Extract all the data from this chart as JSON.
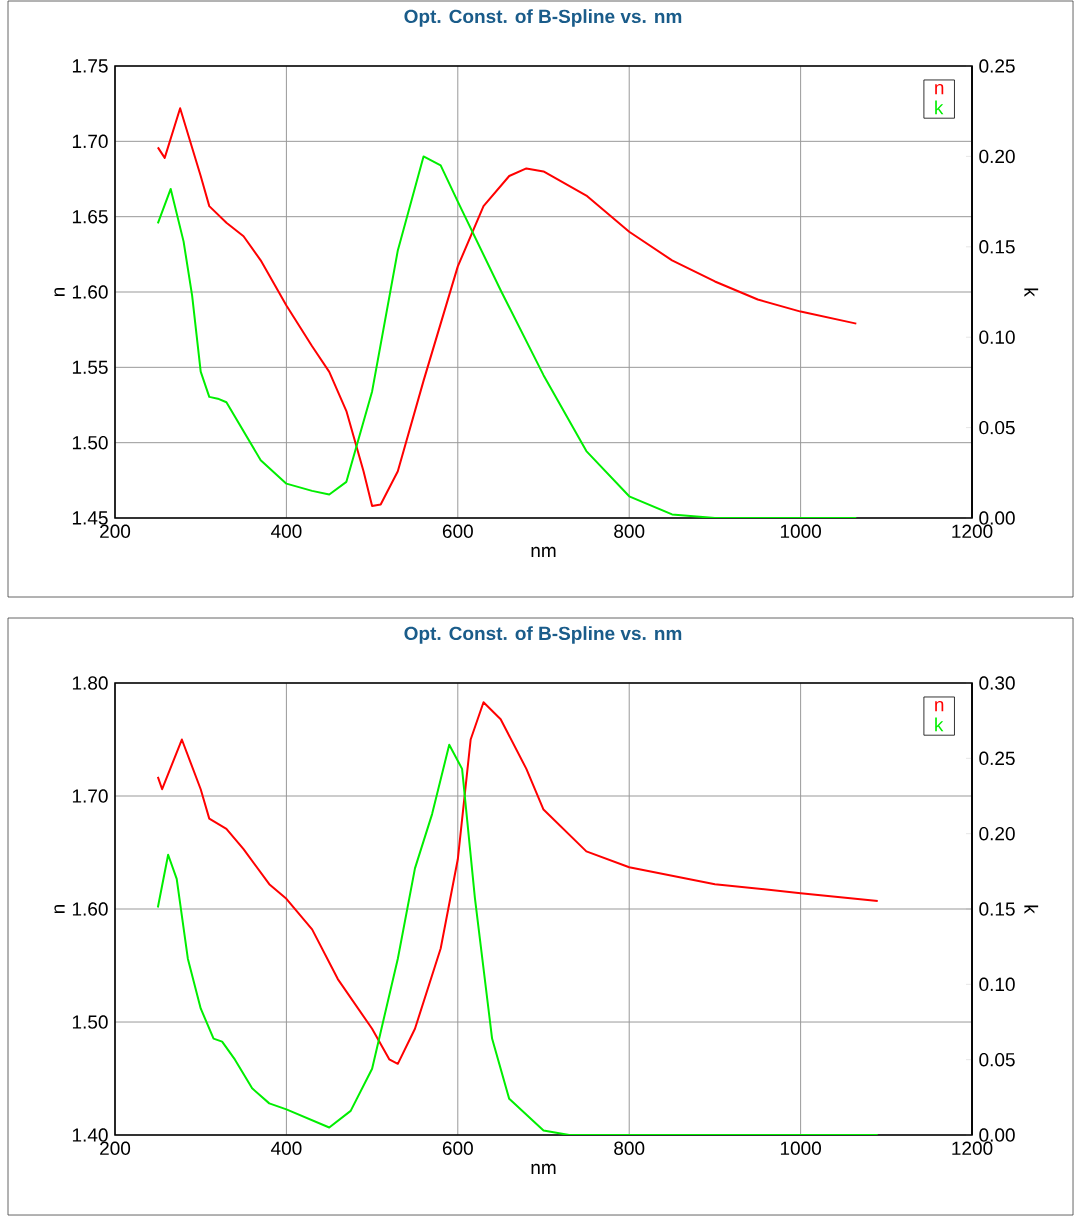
{
  "chart_data": [
    {
      "type": "line",
      "title": "Opt. Const. of B-Spline vs. nm",
      "xlabel": "nm",
      "ylabel": "n",
      "y2label": "k",
      "xlim": [
        200,
        1200
      ],
      "xticks": [
        200,
        400,
        600,
        800,
        1000,
        1200
      ],
      "ylim": [
        1.45,
        1.75
      ],
      "yticks": [
        1.45,
        {
          "value": 1.5,
          "label": "1.50"
        },
        1.55,
        {
          "value": 1.6,
          "label": "1.60"
        },
        1.65,
        {
          "value": 1.7,
          "label": "1.70"
        },
        1.75
      ],
      "y2lim": [
        0,
        0.25
      ],
      "y2ticks": [
        {
          "value": 0,
          "label": "0.00"
        },
        0.05,
        {
          "value": 0.1,
          "label": "0.10"
        },
        0.15,
        {
          "value": 0.2,
          "label": "0.20"
        },
        0.25
      ],
      "grid": true,
      "legend": "top right",
      "series": [
        {
          "name": "n",
          "color": "#ff0000",
          "x": [
            250,
            258,
            276,
            300,
            310,
            330,
            350,
            370,
            400,
            430,
            450,
            470,
            490,
            500,
            510,
            530,
            560,
            600,
            630,
            660,
            680,
            700,
            750,
            800,
            850,
            900,
            950,
            1000,
            1065
          ],
          "values": [
            1.696,
            1.689,
            1.722,
            1.677,
            1.657,
            1.646,
            1.637,
            1.621,
            1.591,
            1.564,
            1.547,
            1.521,
            1.481,
            1.458,
            1.459,
            1.481,
            1.541,
            1.617,
            1.657,
            1.677,
            1.682,
            1.68,
            1.664,
            1.64,
            1.621,
            1.607,
            1.595,
            1.587,
            1.579
          ]
        },
        {
          "name": "k",
          "color": "#00ee00",
          "axis": "y2",
          "x": [
            250,
            265,
            280,
            290,
            300,
            310,
            320,
            330,
            350,
            370,
            400,
            430,
            450,
            470,
            500,
            530,
            560,
            580,
            600,
            650,
            700,
            750,
            800,
            850,
            900,
            1065
          ],
          "values": [
            0.163,
            0.182,
            0.153,
            0.123,
            0.081,
            0.067,
            0.066,
            0.064,
            0.048,
            0.032,
            0.019,
            0.015,
            0.013,
            0.02,
            0.07,
            0.148,
            0.2,
            0.195,
            0.175,
            0.126,
            0.079,
            0.037,
            0.012,
            0.002,
            0,
            0
          ]
        }
      ]
    },
    {
      "type": "line",
      "title": "Opt. Const. of B-Spline vs. nm",
      "xlabel": "nm",
      "ylabel": "n",
      "y2label": "k",
      "xlim": [
        200,
        1200
      ],
      "xticks": [
        200,
        400,
        600,
        800,
        1000,
        1200
      ],
      "ylim": [
        1.4,
        1.8
      ],
      "yticks": [
        {
          "value": 1.4,
          "label": "1.40"
        },
        {
          "value": 1.5,
          "label": "1.50"
        },
        {
          "value": 1.6,
          "label": "1.60"
        },
        {
          "value": 1.7,
          "label": "1.70"
        },
        {
          "value": 1.8,
          "label": "1.80"
        }
      ],
      "y2lim": [
        0,
        0.3
      ],
      "y2ticks": [
        {
          "value": 0,
          "label": "0.00"
        },
        0.05,
        {
          "value": 0.1,
          "label": "0.10"
        },
        0.15,
        {
          "value": 0.2,
          "label": "0.20"
        },
        0.25,
        {
          "value": 0.3,
          "label": "0.30"
        }
      ],
      "grid": true,
      "legend": "top right",
      "series": [
        {
          "name": "n",
          "color": "#ff0000",
          "x": [
            250,
            255,
            278,
            300,
            310,
            330,
            350,
            380,
            400,
            430,
            460,
            500,
            520,
            530,
            550,
            580,
            600,
            615,
            630,
            650,
            680,
            700,
            750,
            800,
            900,
            1000,
            1090
          ],
          "values": [
            1.717,
            1.706,
            1.75,
            1.706,
            1.68,
            1.671,
            1.653,
            1.622,
            1.609,
            1.582,
            1.538,
            1.494,
            1.467,
            1.463,
            1.494,
            1.565,
            1.644,
            1.75,
            1.783,
            1.768,
            1.724,
            1.688,
            1.651,
            1.637,
            1.622,
            1.614,
            1.607
          ]
        },
        {
          "name": "k",
          "color": "#00ee00",
          "axis": "y2",
          "x": [
            250,
            262,
            272,
            285,
            300,
            315,
            325,
            340,
            360,
            380,
            400,
            425,
            450,
            475,
            500,
            530,
            550,
            570,
            590,
            605,
            620,
            640,
            660,
            700,
            730,
            1090
          ],
          "values": [
            0.151,
            0.186,
            0.17,
            0.117,
            0.084,
            0.064,
            0.062,
            0.05,
            0.031,
            0.021,
            0.017,
            0.011,
            0.005,
            0.016,
            0.044,
            0.117,
            0.177,
            0.213,
            0.259,
            0.243,
            0.157,
            0.064,
            0.024,
            0.003,
            0,
            0
          ]
        }
      ]
    }
  ]
}
